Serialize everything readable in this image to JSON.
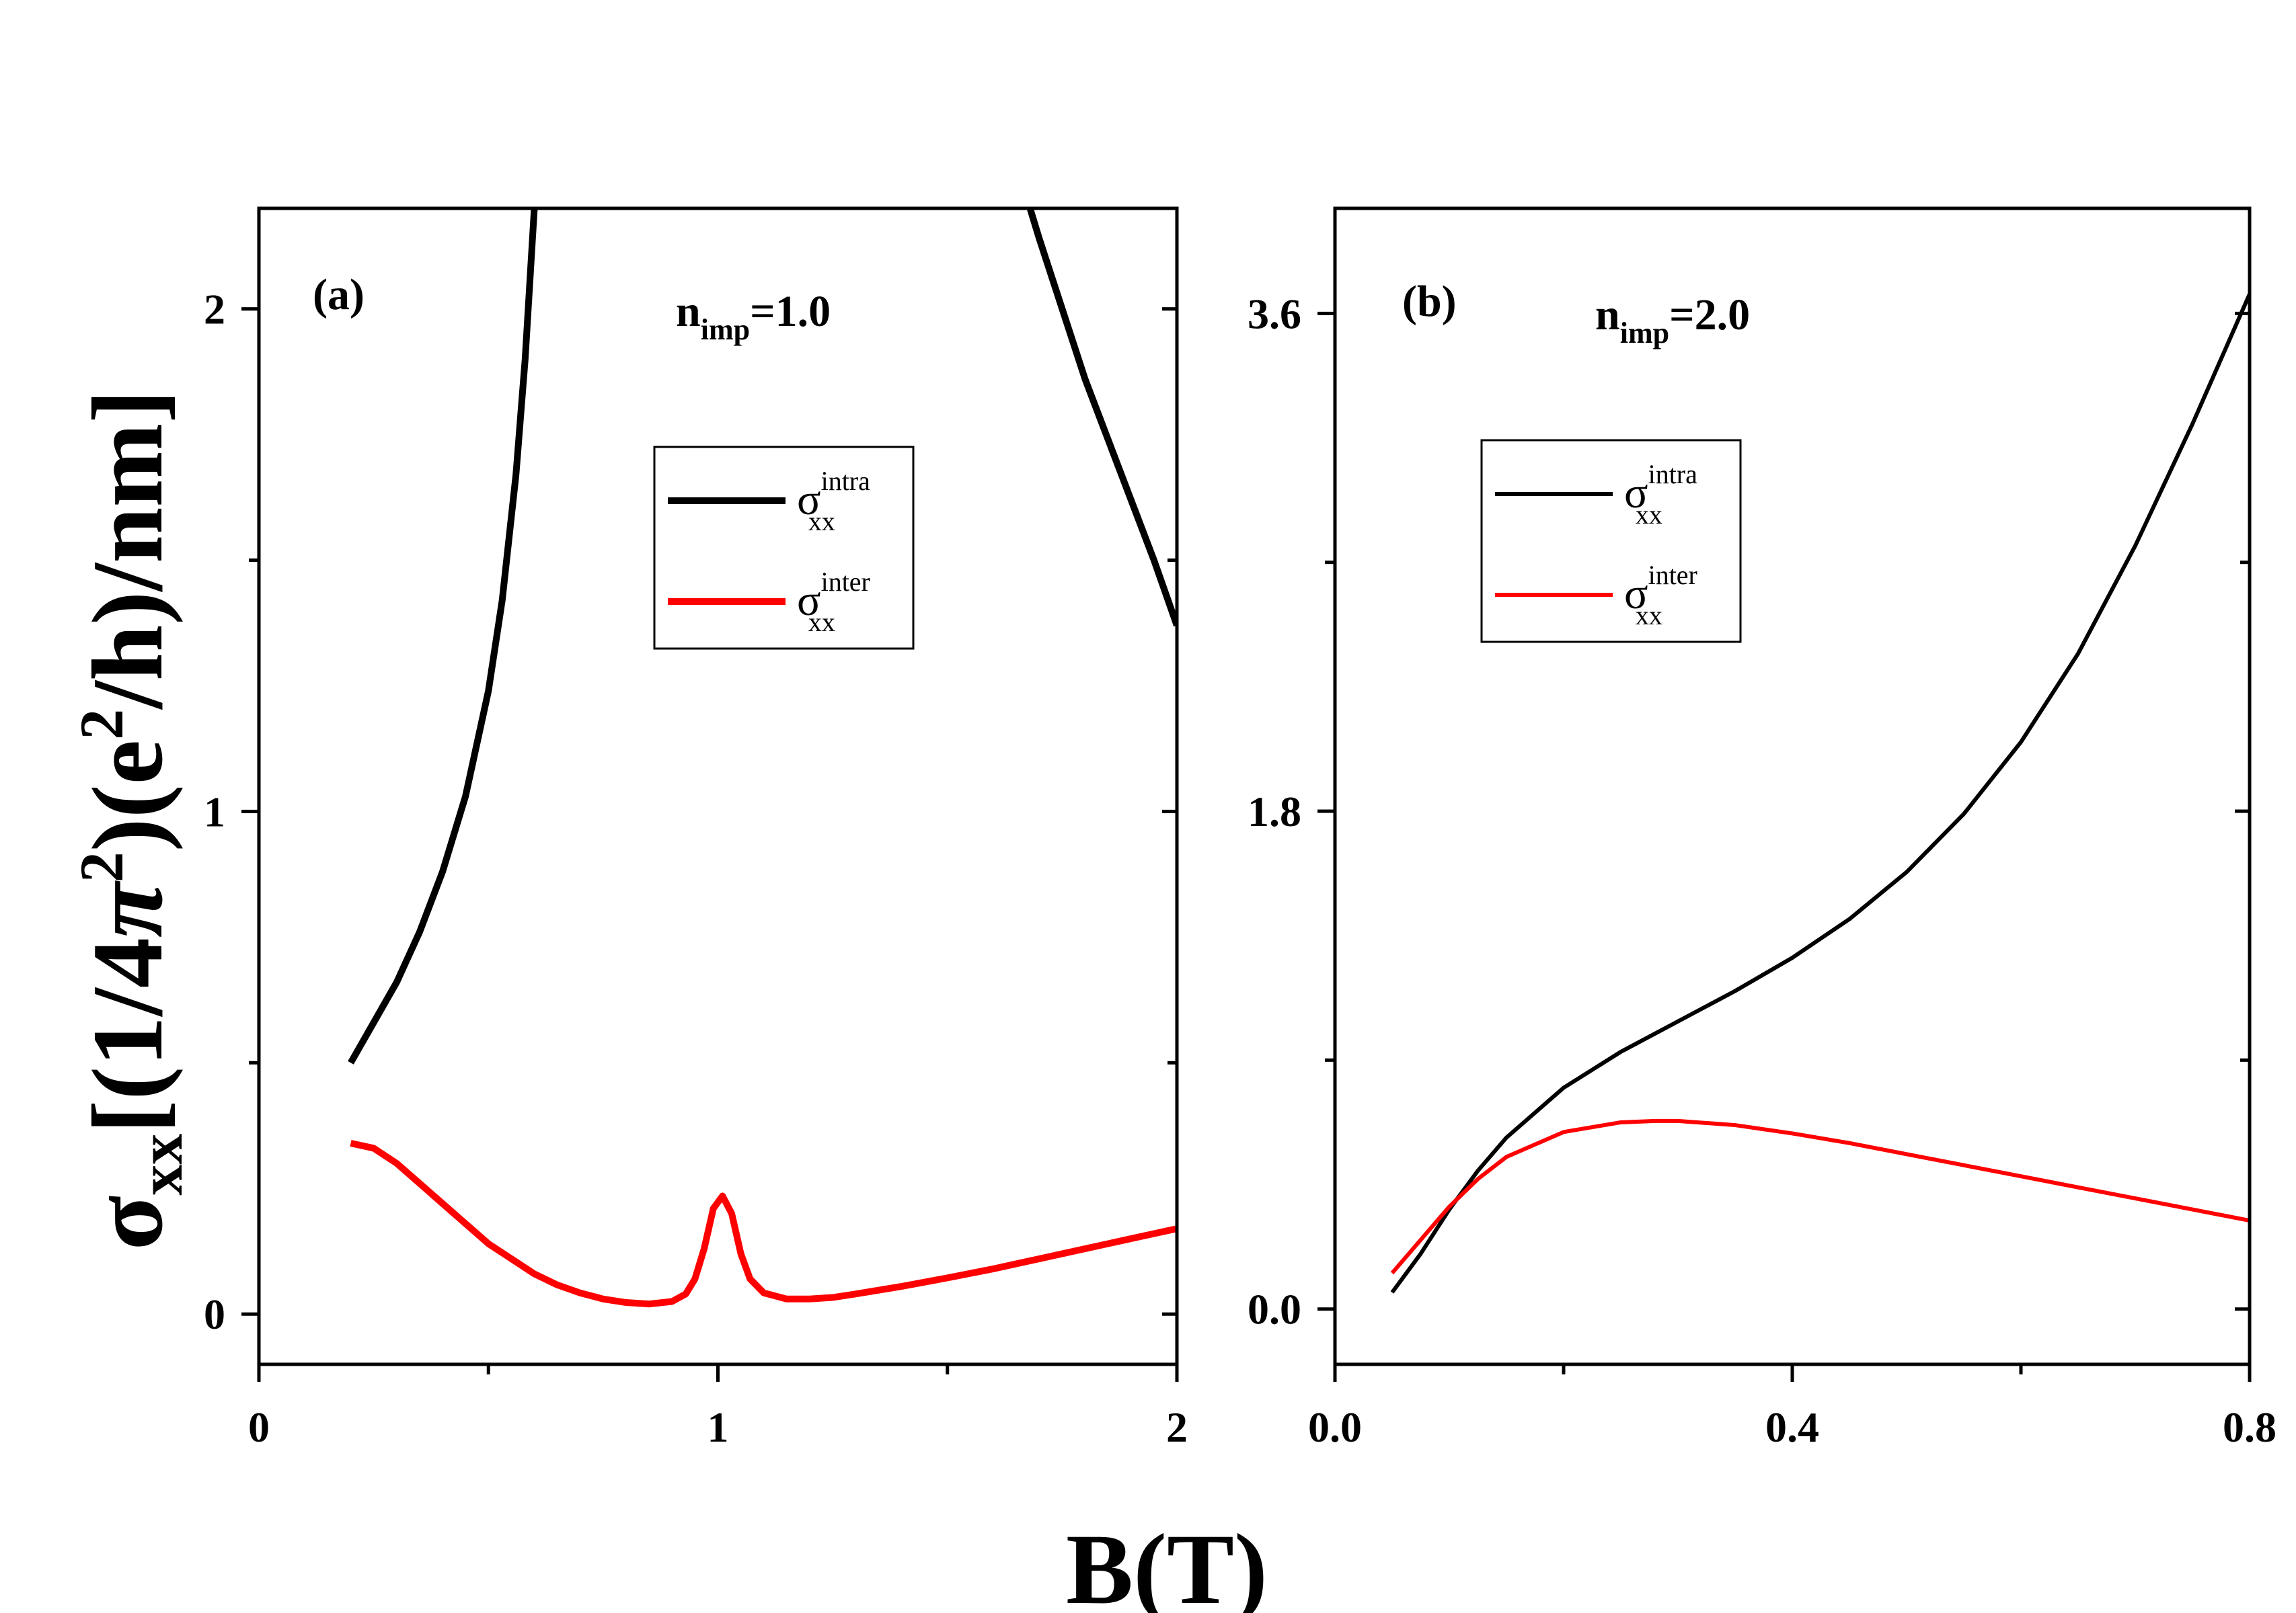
{
  "figure": {
    "ylabel": {
      "sigma": "σ",
      "sub": "xx",
      "part1": "[(1/4",
      "pi": "π",
      "sup2": "2",
      "part2": ")(e",
      "part3": "/h)/nm]"
    },
    "xlabel": "B(T)"
  },
  "chart_data": [
    {
      "type": "line",
      "panel": "(a)",
      "annotation": {
        "n": "n",
        "sub": "imp",
        "rest": "=1.0"
      },
      "xlim": [
        0,
        2
      ],
      "ylim": [
        -0.1,
        2.2
      ],
      "x_ticks": [
        0,
        1,
        2
      ],
      "x_tick_labels": [
        "0",
        "1",
        "2"
      ],
      "x_minor_ticks": [
        0.5,
        1.5
      ],
      "y_ticks": [
        0,
        1,
        2
      ],
      "y_tick_labels": [
        "0",
        "1",
        "2"
      ],
      "y_minor_ticks": [
        0.5,
        1.5
      ],
      "legend_position": "upper-center",
      "series": [
        {
          "name": "intra",
          "label_sym": "σ",
          "label_sup": "intra",
          "label_sub": "xx",
          "color": "#000000",
          "x": [
            0.2,
            0.25,
            0.3,
            0.35,
            0.4,
            0.45,
            0.5,
            0.53,
            0.56,
            0.58,
            0.6,
            1.68,
            1.7,
            1.75,
            1.8,
            1.85,
            1.9,
            1.95,
            2.0
          ],
          "y": [
            0.5,
            0.58,
            0.66,
            0.76,
            0.88,
            1.03,
            1.24,
            1.42,
            1.67,
            1.9,
            2.2,
            2.2,
            2.14,
            2.0,
            1.86,
            1.74,
            1.62,
            1.5,
            1.37
          ]
        },
        {
          "name": "inter",
          "label_sym": "σ",
          "label_sup": "inter",
          "label_sub": "xx",
          "color": "#ff0000",
          "x": [
            0.2,
            0.25,
            0.3,
            0.35,
            0.4,
            0.45,
            0.5,
            0.55,
            0.6,
            0.65,
            0.7,
            0.75,
            0.8,
            0.85,
            0.9,
            0.93,
            0.95,
            0.97,
            0.99,
            1.01,
            1.03,
            1.05,
            1.07,
            1.1,
            1.15,
            1.2,
            1.25,
            1.3,
            1.4,
            1.5,
            1.6,
            1.7,
            1.8,
            1.9,
            2.0
          ],
          "y": [
            0.34,
            0.33,
            0.3,
            0.26,
            0.22,
            0.18,
            0.14,
            0.11,
            0.08,
            0.058,
            0.042,
            0.03,
            0.023,
            0.02,
            0.025,
            0.04,
            0.07,
            0.13,
            0.21,
            0.235,
            0.2,
            0.12,
            0.07,
            0.042,
            0.03,
            0.03,
            0.033,
            0.04,
            0.055,
            0.072,
            0.09,
            0.11,
            0.13,
            0.15,
            0.17
          ]
        }
      ]
    },
    {
      "type": "line",
      "panel": "(b)",
      "annotation": {
        "n": "n",
        "sub": "imp",
        "rest": "=2.0"
      },
      "xlim": [
        0,
        0.8
      ],
      "ylim": [
        -0.2,
        3.98
      ],
      "x_ticks": [
        0.0,
        0.4,
        0.8
      ],
      "x_tick_labels": [
        "0.0",
        "0.4",
        "0.8"
      ],
      "x_minor_ticks": [
        0.2,
        0.6
      ],
      "y_ticks": [
        0.0,
        1.8,
        3.6
      ],
      "y_tick_labels": [
        "0.0",
        "1.8",
        "3.6"
      ],
      "y_minor_ticks": [
        0.9,
        2.7
      ],
      "legend_position": "upper-left",
      "series": [
        {
          "name": "intra",
          "label_sym": "σ",
          "label_sup": "intra",
          "label_sub": "xx",
          "color": "#000000",
          "x": [
            0.05,
            0.075,
            0.1,
            0.125,
            0.15,
            0.2,
            0.25,
            0.3,
            0.35,
            0.4,
            0.45,
            0.5,
            0.55,
            0.6,
            0.65,
            0.7,
            0.75,
            0.8
          ],
          "y": [
            0.06,
            0.2,
            0.36,
            0.5,
            0.62,
            0.8,
            0.93,
            1.04,
            1.15,
            1.27,
            1.41,
            1.58,
            1.79,
            2.05,
            2.37,
            2.76,
            3.2,
            3.67
          ]
        },
        {
          "name": "inter",
          "label_sym": "σ",
          "label_sup": "inter",
          "label_sub": "xx",
          "color": "#ff0000",
          "x": [
            0.05,
            0.075,
            0.1,
            0.125,
            0.15,
            0.2,
            0.25,
            0.28,
            0.3,
            0.35,
            0.4,
            0.45,
            0.5,
            0.55,
            0.6,
            0.65,
            0.7,
            0.75,
            0.8
          ],
          "y": [
            0.13,
            0.25,
            0.37,
            0.47,
            0.55,
            0.64,
            0.675,
            0.68,
            0.68,
            0.665,
            0.635,
            0.6,
            0.56,
            0.52,
            0.48,
            0.44,
            0.4,
            0.36,
            0.32
          ]
        }
      ]
    }
  ]
}
